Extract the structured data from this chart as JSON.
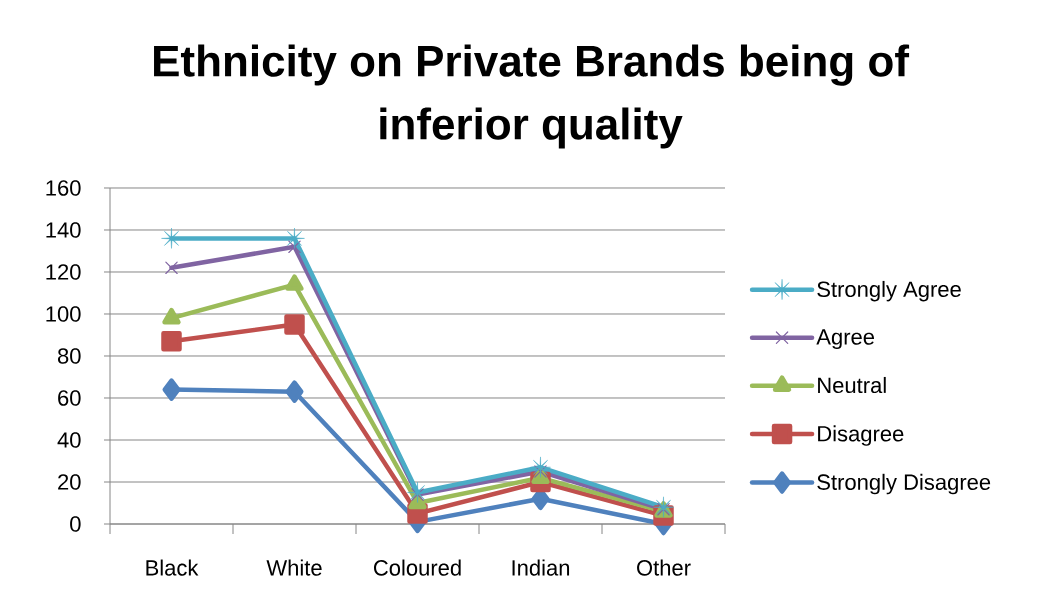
{
  "chart_data": {
    "type": "line",
    "title": "Ethnicity on Private Brands being of inferior quality",
    "categories": [
      "Black",
      "White",
      "Coloured",
      "Indian",
      "Other"
    ],
    "series": [
      {
        "name": "Strongly Agree",
        "color": "#4bacc6",
        "marker": "star",
        "values": [
          136,
          136,
          15,
          27,
          8
        ]
      },
      {
        "name": "Agree",
        "color": "#8064a2",
        "marker": "cross",
        "values": [
          122,
          132,
          14,
          25,
          7
        ]
      },
      {
        "name": "Neutral",
        "color": "#9bbb59",
        "marker": "triangle",
        "values": [
          98,
          114,
          10,
          22,
          6
        ]
      },
      {
        "name": "Disagree",
        "color": "#c0504d",
        "marker": "square",
        "values": [
          87,
          95,
          5,
          20,
          4
        ]
      },
      {
        "name": "Strongly Disagree",
        "color": "#4f81bd",
        "marker": "diamond",
        "values": [
          64,
          63,
          1,
          12,
          0
        ]
      }
    ],
    "ylim": [
      0,
      160
    ],
    "yticks": [
      0,
      20,
      40,
      60,
      80,
      100,
      120,
      140,
      160
    ],
    "grid": "y",
    "legend": "right"
  }
}
